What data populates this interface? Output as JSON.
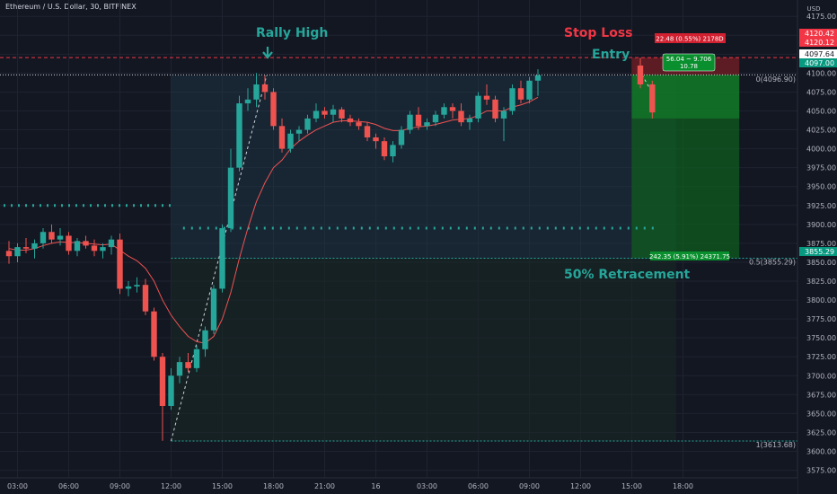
{
  "header": {
    "symbol_title": "Ethereum / U.S. Dollar, 30, BITFINEX"
  },
  "axis": {
    "currency": "USD",
    "price_ticks": [
      4175,
      4150,
      4125,
      4100,
      4075,
      4050,
      4025,
      4000,
      3975,
      3950,
      3925,
      3900,
      3875,
      3850,
      3825,
      3800,
      3775,
      3750,
      3725,
      3700,
      3675,
      3650,
      3625,
      3600,
      3575
    ],
    "price_tick_labels": [
      "4175.00",
      "4150.00",
      "4125.00",
      "4100.00",
      "4075.00",
      "4050.00",
      "4025.00",
      "4000.00",
      "3975.00",
      "3950.00",
      "3925.00",
      "3900.00",
      "3875.00",
      "3850.00",
      "3825.00",
      "3800.00",
      "3775.00",
      "3750.00",
      "3725.00",
      "3700.00",
      "3675.00",
      "3650.00",
      "3625.00",
      "3600.00",
      "3575.00"
    ],
    "time_ticks": [
      {
        "i": 1,
        "label": "03:00"
      },
      {
        "i": 7,
        "label": "06:00"
      },
      {
        "i": 13,
        "label": "09:00"
      },
      {
        "i": 19,
        "label": "12:00"
      },
      {
        "i": 25,
        "label": "15:00"
      },
      {
        "i": 31,
        "label": "18:00"
      },
      {
        "i": 37,
        "label": "21:00"
      },
      {
        "i": 43,
        "label": "16"
      },
      {
        "i": 49,
        "label": "03:00"
      },
      {
        "i": 55,
        "label": "06:00"
      },
      {
        "i": 61,
        "label": "09:00"
      },
      {
        "i": 67,
        "label": "12:00"
      },
      {
        "i": 73,
        "label": "15:00"
      },
      {
        "i": 79,
        "label": "18:00"
      }
    ],
    "price_badges": [
      {
        "price": 4120.42,
        "label": "4120.42",
        "color": "#f23645"
      },
      {
        "price": 4120.12,
        "label": "4120.12",
        "color": "#f23645"
      },
      {
        "price": 4097.64,
        "label": "4097.64",
        "color": "#ffffff"
      },
      {
        "price": 4097.0,
        "label": "4097.00",
        "color": "#089981"
      },
      {
        "price": 3855.29,
        "label": "3855.29",
        "color": "#089981"
      }
    ]
  },
  "annotations": {
    "rally_high": "Rally High",
    "stop_loss": "Stop Loss",
    "entry": "Entry",
    "retracement": "50% Retracement",
    "fib_top_label": "0(4096.90)",
    "fib_mid_label": "0.5(3855.29)",
    "fib_bottom_label": "1(3613.68)",
    "risk_box_label": "22.48 (0.55%) 2178D",
    "position_box_label_line1": "56.04 ~ 9.706",
    "position_box_label_line2": "10.78",
    "target_box_label": "242.35 (5.91%) 24371.75"
  },
  "colors": {
    "background": "#131722",
    "grid": "#1f2330",
    "up": "#26a69a",
    "down": "#ef5350",
    "ma": "#f05252",
    "teal_text": "#26a69a",
    "stop_text": "#f23645",
    "profit_zone": "#0f5c1f",
    "loss_zone": "#6b1d24",
    "fib_zone": "#1e3a4a"
  },
  "chart_data": {
    "type": "candlestick",
    "symbol": "Ethereum / U.S. Dollar",
    "timeframe": "30",
    "exchange": "BITFINEX",
    "ylim": [
      3565,
      4180
    ],
    "candles": [
      {
        "o": 3865,
        "h": 3878,
        "l": 3848,
        "c": 3858
      },
      {
        "o": 3858,
        "h": 3875,
        "l": 3850,
        "c": 3870
      },
      {
        "o": 3870,
        "h": 3882,
        "l": 3862,
        "c": 3868
      },
      {
        "o": 3868,
        "h": 3880,
        "l": 3855,
        "c": 3875
      },
      {
        "o": 3875,
        "h": 3895,
        "l": 3868,
        "c": 3890
      },
      {
        "o": 3890,
        "h": 3900,
        "l": 3875,
        "c": 3880
      },
      {
        "o": 3880,
        "h": 3895,
        "l": 3872,
        "c": 3885
      },
      {
        "o": 3885,
        "h": 3890,
        "l": 3860,
        "c": 3865
      },
      {
        "o": 3865,
        "h": 3882,
        "l": 3858,
        "c": 3878
      },
      {
        "o": 3878,
        "h": 3885,
        "l": 3868,
        "c": 3872
      },
      {
        "o": 3872,
        "h": 3880,
        "l": 3858,
        "c": 3865
      },
      {
        "o": 3865,
        "h": 3875,
        "l": 3855,
        "c": 3870
      },
      {
        "o": 3870,
        "h": 3885,
        "l": 3860,
        "c": 3880
      },
      {
        "o": 3880,
        "h": 3888,
        "l": 3808,
        "c": 3815
      },
      {
        "o": 3815,
        "h": 3825,
        "l": 3805,
        "c": 3818
      },
      {
        "o": 3818,
        "h": 3830,
        "l": 3810,
        "c": 3820
      },
      {
        "o": 3820,
        "h": 3828,
        "l": 3780,
        "c": 3785
      },
      {
        "o": 3785,
        "h": 3790,
        "l": 3720,
        "c": 3725
      },
      {
        "o": 3725,
        "h": 3730,
        "l": 3614,
        "c": 3660
      },
      {
        "o": 3660,
        "h": 3710,
        "l": 3655,
        "c": 3700
      },
      {
        "o": 3700,
        "h": 3725,
        "l": 3690,
        "c": 3718
      },
      {
        "o": 3718,
        "h": 3730,
        "l": 3705,
        "c": 3710
      },
      {
        "o": 3710,
        "h": 3740,
        "l": 3705,
        "c": 3735
      },
      {
        "o": 3735,
        "h": 3765,
        "l": 3725,
        "c": 3760
      },
      {
        "o": 3760,
        "h": 3820,
        "l": 3755,
        "c": 3815
      },
      {
        "o": 3815,
        "h": 3900,
        "l": 3810,
        "c": 3895
      },
      {
        "o": 3895,
        "h": 4000,
        "l": 3890,
        "c": 3975
      },
      {
        "o": 3975,
        "h": 4070,
        "l": 3970,
        "c": 4060
      },
      {
        "o": 4060,
        "h": 4080,
        "l": 4050,
        "c": 4065
      },
      {
        "o": 4065,
        "h": 4100,
        "l": 4055,
        "c": 4085
      },
      {
        "o": 4085,
        "h": 4096.9,
        "l": 4065,
        "c": 4075
      },
      {
        "o": 4075,
        "h": 4080,
        "l": 4025,
        "c": 4030
      },
      {
        "o": 4030,
        "h": 4040,
        "l": 3995,
        "c": 4000
      },
      {
        "o": 4000,
        "h": 4025,
        "l": 3995,
        "c": 4020
      },
      {
        "o": 4020,
        "h": 4030,
        "l": 4010,
        "c": 4025
      },
      {
        "o": 4025,
        "h": 4045,
        "l": 4020,
        "c": 4040
      },
      {
        "o": 4040,
        "h": 4060,
        "l": 4035,
        "c": 4050
      },
      {
        "o": 4050,
        "h": 4055,
        "l": 4040,
        "c": 4045
      },
      {
        "o": 4045,
        "h": 4058,
        "l": 4035,
        "c": 4052
      },
      {
        "o": 4052,
        "h": 4055,
        "l": 4035,
        "c": 4040
      },
      {
        "o": 4040,
        "h": 4045,
        "l": 4030,
        "c": 4035
      },
      {
        "o": 4035,
        "h": 4040,
        "l": 4025,
        "c": 4030
      },
      {
        "o": 4030,
        "h": 4035,
        "l": 4010,
        "c": 4015
      },
      {
        "o": 4015,
        "h": 4020,
        "l": 4000,
        "c": 4010
      },
      {
        "o": 4010,
        "h": 4015,
        "l": 3985,
        "c": 3990
      },
      {
        "o": 3990,
        "h": 4010,
        "l": 3982,
        "c": 4005
      },
      {
        "o": 4005,
        "h": 4030,
        "l": 4000,
        "c": 4025
      },
      {
        "o": 4025,
        "h": 4050,
        "l": 4020,
        "c": 4045
      },
      {
        "o": 4045,
        "h": 4055,
        "l": 4025,
        "c": 4030
      },
      {
        "o": 4030,
        "h": 4040,
        "l": 4025,
        "c": 4035
      },
      {
        "o": 4035,
        "h": 4050,
        "l": 4030,
        "c": 4045
      },
      {
        "o": 4045,
        "h": 4060,
        "l": 4040,
        "c": 4055
      },
      {
        "o": 4055,
        "h": 4060,
        "l": 4040,
        "c": 4050
      },
      {
        "o": 4050,
        "h": 4060,
        "l": 4030,
        "c": 4035
      },
      {
        "o": 4035,
        "h": 4045,
        "l": 4025,
        "c": 4040
      },
      {
        "o": 4040,
        "h": 4075,
        "l": 4035,
        "c": 4070
      },
      {
        "o": 4070,
        "h": 4085,
        "l": 4058,
        "c": 4065
      },
      {
        "o": 4065,
        "h": 4070,
        "l": 4035,
        "c": 4040
      },
      {
        "o": 4040,
        "h": 4055,
        "l": 4010,
        "c": 4050
      },
      {
        "o": 4050,
        "h": 4085,
        "l": 4045,
        "c": 4080
      },
      {
        "o": 4080,
        "h": 4090,
        "l": 4060,
        "c": 4065
      },
      {
        "o": 4065,
        "h": 4095,
        "l": 4060,
        "c": 4090
      },
      {
        "o": 4090,
        "h": 4105,
        "l": 4070,
        "c": 4097
      }
    ],
    "ma": [
      3868,
      3866,
      3866,
      3868,
      3872,
      3875,
      3877,
      3876,
      3876,
      3875,
      3874,
      3873,
      3874,
      3866,
      3858,
      3852,
      3842,
      3825,
      3800,
      3780,
      3765,
      3752,
      3745,
      3743,
      3752,
      3775,
      3810,
      3855,
      3895,
      3930,
      3955,
      3975,
      3985,
      4000,
      4010,
      4018,
      4025,
      4030,
      4035,
      4037,
      4037,
      4036,
      4035,
      4032,
      4027,
      4024,
      4024,
      4027,
      4029,
      4030,
      4032,
      4035,
      4038,
      4039,
      4040,
      4044,
      4050,
      4050,
      4050,
      4055,
      4058,
      4062,
      4068
    ],
    "rally_high": 4096.9,
    "stop_loss": 4120.42,
    "entry": 4097.64,
    "target": 3855.29,
    "fib_levels": [
      {
        "ratio": 0,
        "price": 4096.9
      },
      {
        "ratio": 0.5,
        "price": 3855.29
      },
      {
        "ratio": 1,
        "price": 3613.68
      }
    ],
    "range_low": 3613.68,
    "dotted_support_left": 3925,
    "dotted_support_mid": 3895
  }
}
